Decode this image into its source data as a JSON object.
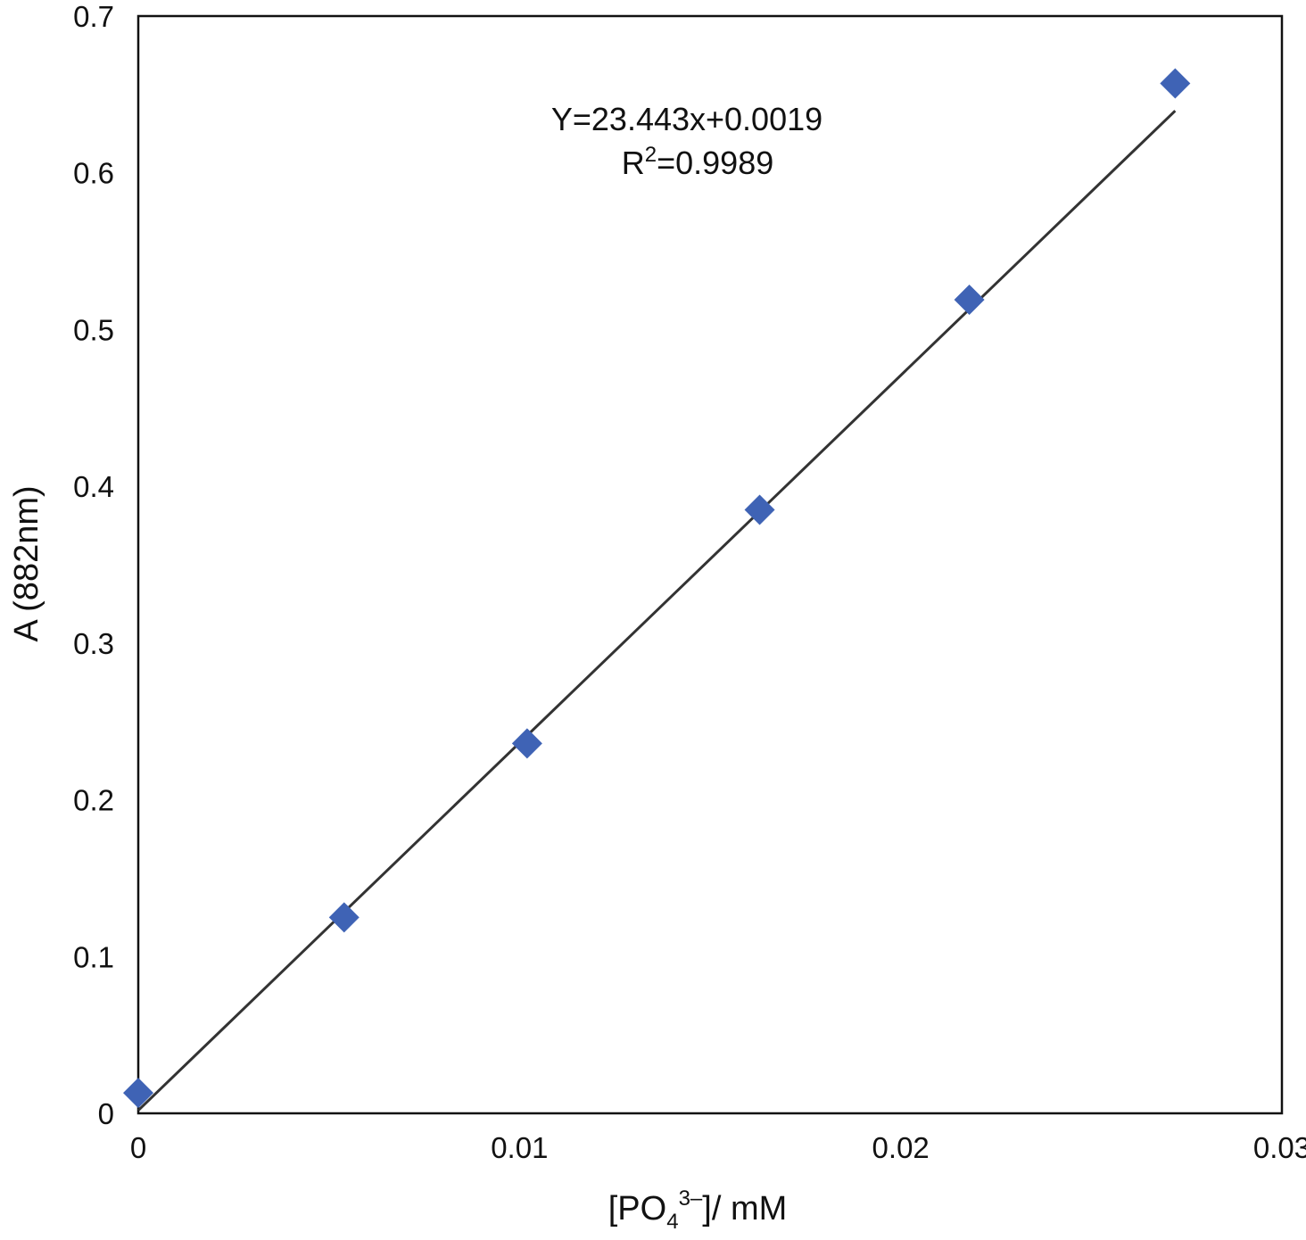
{
  "chart_data": {
    "type": "scatter",
    "xlabel": {
      "prefix": "[PO",
      "sub": "4",
      "sup": "3–",
      "suffix": "]/ mM"
    },
    "ylabel": "A (882nm)",
    "xlim": [
      0,
      0.03
    ],
    "ylim": [
      0,
      0.7
    ],
    "x_ticks": [
      "0",
      "0.01",
      "0.02",
      "0.03"
    ],
    "x_tick_values": [
      0,
      0.01,
      0.02,
      0.03
    ],
    "y_ticks": [
      "0",
      "0.1",
      "0.2",
      "0.3",
      "0.4",
      "0.5",
      "0.6",
      "0.7"
    ],
    "y_tick_values": [
      0,
      0.1,
      0.2,
      0.3,
      0.4,
      0.5,
      0.6,
      0.7
    ],
    "grid": false,
    "marker": "diamond",
    "marker_color": "#3f63b5",
    "series": [
      {
        "points": [
          {
            "x": 0.0,
            "y": 0.013
          },
          {
            "x": 0.0054,
            "y": 0.125
          },
          {
            "x": 0.0102,
            "y": 0.236
          },
          {
            "x": 0.0163,
            "y": 0.385
          },
          {
            "x": 0.0218,
            "y": 0.519
          },
          {
            "x": 0.0272,
            "y": 0.657
          }
        ]
      }
    ],
    "trendline": {
      "slope": 23.443,
      "intercept": 0.0019,
      "x_range": [
        0,
        0.0272
      ],
      "color": "#333333"
    },
    "annotation": {
      "equation": "Y=23.443x+0.0019",
      "r2_prefix": "R",
      "r2_sup": "2",
      "r2_value": "=0.9989"
    }
  }
}
